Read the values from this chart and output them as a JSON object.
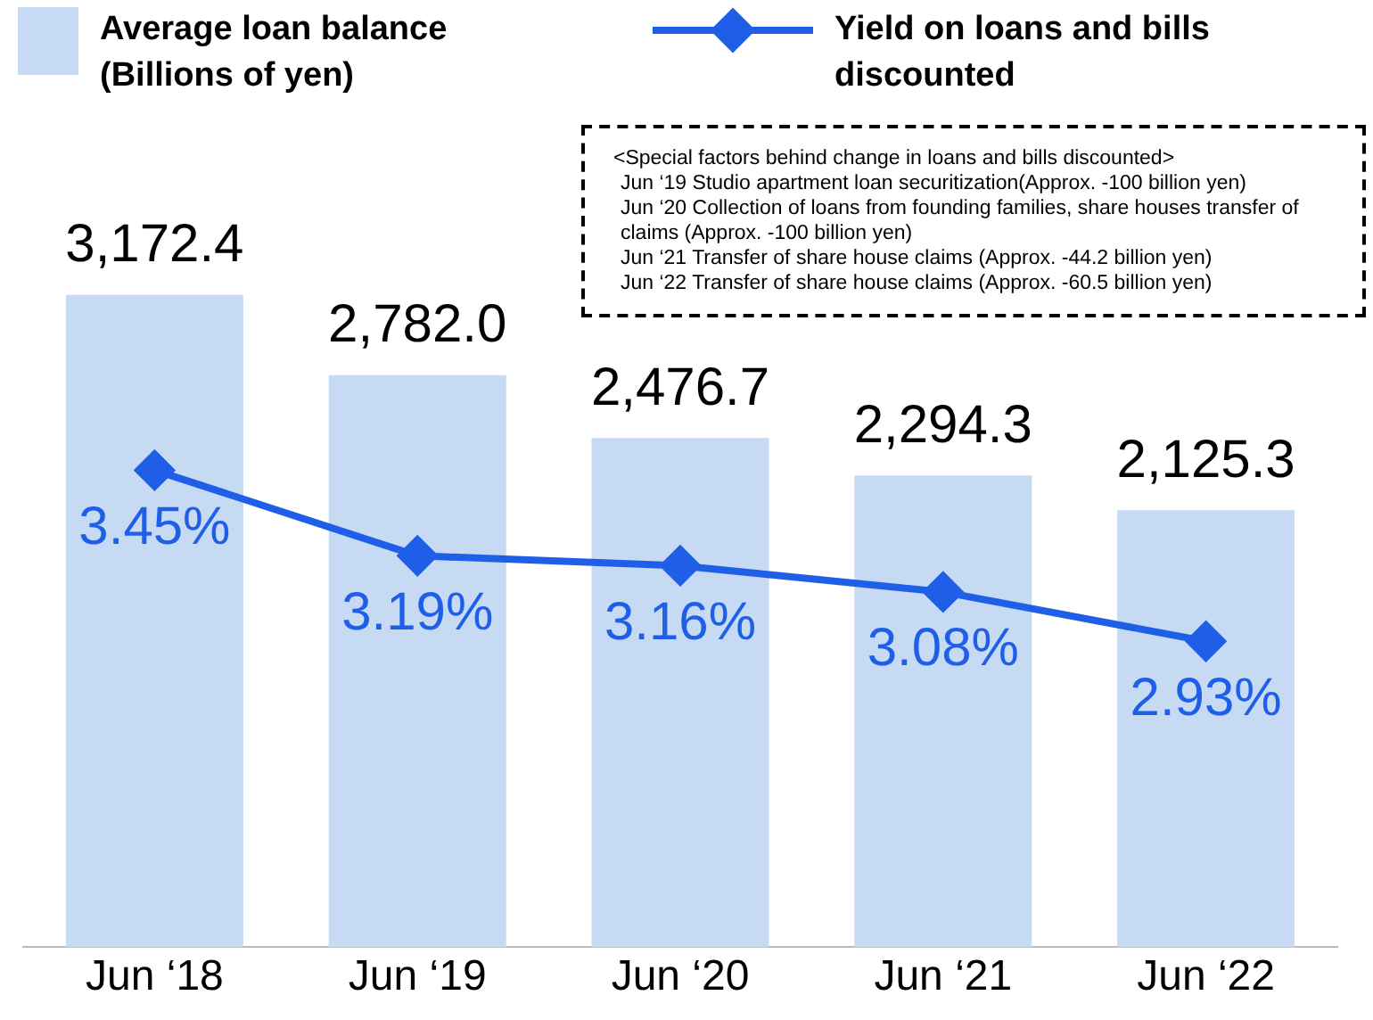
{
  "chart_data": {
    "type": "bar",
    "categories": [
      "Jun ‘18",
      "Jun ‘19",
      "Jun ‘20",
      "Jun ‘21",
      "Jun ‘22"
    ],
    "series": [
      {
        "name": "Average loan balance (Billions of yen)",
        "color": "#c6daf4",
        "values": [
          3172.4,
          2782.0,
          2476.7,
          2294.3,
          2125.3
        ],
        "value_labels": [
          "3,172.4",
          "2,782.0",
          "2,476.7",
          "2,294.3",
          "2,125.3"
        ]
      },
      {
        "name": "Yield on loans and bills discounted",
        "type": "line",
        "axis": "y2",
        "color": "#1f5fe8",
        "values": [
          3.45,
          3.19,
          3.16,
          3.08,
          2.93
        ],
        "value_labels": [
          "3.45%",
          "3.19%",
          "3.16%",
          "3.08%",
          "2.93%"
        ]
      }
    ],
    "data_labels": true,
    "grid": false,
    "legend": "top left",
    "tick_labels": "x",
    "marker": "diamond",
    "annotations": [
      "<Special factors behind change in loans and bills discounted>",
      "Jun ‘19 Studio apartment loan securitization(Approx. -100 billion yen)",
      "Jun ‘20 Collection of loans from founding families, share houses transfer of claims (Approx. -100 billion yen)",
      "Jun ‘21 Transfer of share house claims (Approx. -44.2 billion yen)",
      "Jun ‘22 Transfer of share house claims (Approx. -60.5 billion yen)"
    ]
  }
}
